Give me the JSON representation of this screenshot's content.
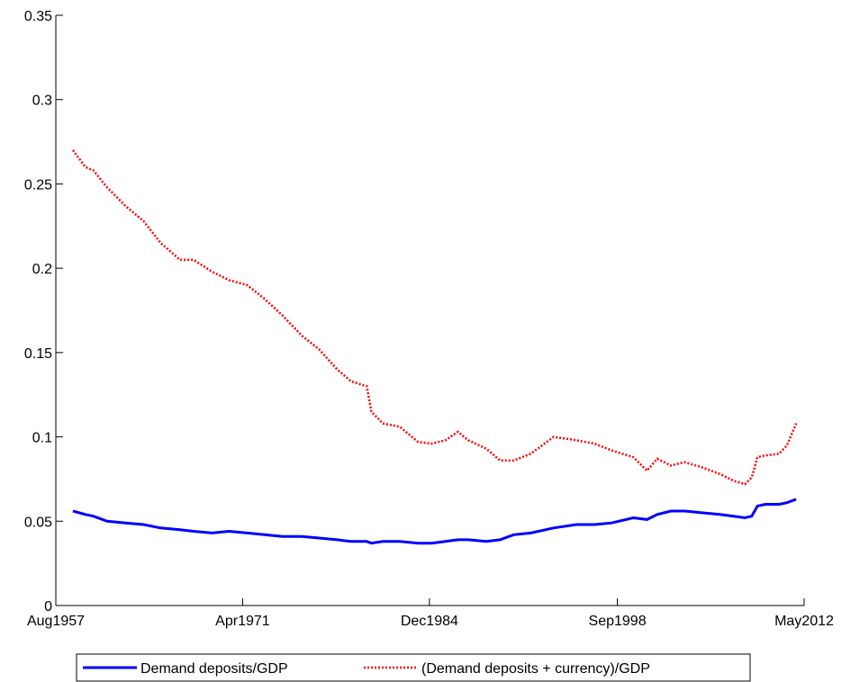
{
  "chart_data": {
    "type": "line",
    "x": [
      "1958-11",
      "1959-10",
      "1960-05",
      "1961-05",
      "1962-09",
      "1964-01",
      "1965-04",
      "1966-09",
      "1967-09",
      "1969-01",
      "1970-04",
      "1971-08",
      "1972-11",
      "1974-03",
      "1975-08",
      "1976-11",
      "1978-03",
      "1979-03",
      "1980-05",
      "1980-09",
      "1981-07",
      "1982-10",
      "1984-02",
      "1985-02",
      "1986-02",
      "1987-01",
      "1987-10",
      "1989-02",
      "1990-02",
      "1991-02",
      "1992-05",
      "1994-01",
      "1995-09",
      "1997-01",
      "1998-04",
      "1999-11",
      "2000-11",
      "2001-08",
      "2002-08",
      "2003-08",
      "2004-11",
      "2006-03",
      "2007-03",
      "2008-01",
      "2008-07",
      "2008-12",
      "2009-07",
      "2010-07",
      "2011-02",
      "2011-10"
    ],
    "series": [
      {
        "name": "Demand deposits/GDP",
        "color": "#0000ff",
        "style": "solid",
        "values": [
          0.056,
          0.054,
          0.053,
          0.05,
          0.049,
          0.048,
          0.046,
          0.045,
          0.044,
          0.043,
          0.044,
          0.043,
          0.042,
          0.041,
          0.041,
          0.04,
          0.039,
          0.038,
          0.038,
          0.037,
          0.038,
          0.038,
          0.037,
          0.037,
          0.038,
          0.039,
          0.039,
          0.038,
          0.039,
          0.042,
          0.043,
          0.046,
          0.048,
          0.048,
          0.049,
          0.052,
          0.051,
          0.054,
          0.056,
          0.056,
          0.055,
          0.054,
          0.053,
          0.052,
          0.053,
          0.059,
          0.06,
          0.06,
          0.061,
          0.063
        ]
      },
      {
        "name": "(Demand deposits + currency)/GDP",
        "color": "#ff0000",
        "style": "dotted",
        "values": [
          0.27,
          0.26,
          0.258,
          0.248,
          0.237,
          0.228,
          0.215,
          0.205,
          0.205,
          0.198,
          0.193,
          0.19,
          0.182,
          0.172,
          0.16,
          0.152,
          0.14,
          0.133,
          0.13,
          0.115,
          0.108,
          0.106,
          0.097,
          0.096,
          0.098,
          0.103,
          0.098,
          0.093,
          0.086,
          0.086,
          0.09,
          0.1,
          0.098,
          0.096,
          0.092,
          0.088,
          0.08,
          0.087,
          0.083,
          0.085,
          0.082,
          0.078,
          0.074,
          0.072,
          0.076,
          0.088,
          0.089,
          0.09,
          0.095,
          0.108
        ]
      }
    ],
    "xlim": [
      "1957-08",
      "2012-05"
    ],
    "xticks": [
      {
        "value": "1957-08",
        "label": "Aug1957"
      },
      {
        "value": "1971-04",
        "label": "Apr1971"
      },
      {
        "value": "1984-12",
        "label": "Dec1984"
      },
      {
        "value": "1998-09",
        "label": "Sep1998"
      },
      {
        "value": "2012-05",
        "label": "May2012"
      }
    ],
    "ylim": [
      0,
      0.35
    ],
    "yticks": [
      0,
      0.05,
      0.1,
      0.15,
      0.2,
      0.25,
      0.3,
      0.35
    ],
    "legend": "bottom"
  }
}
